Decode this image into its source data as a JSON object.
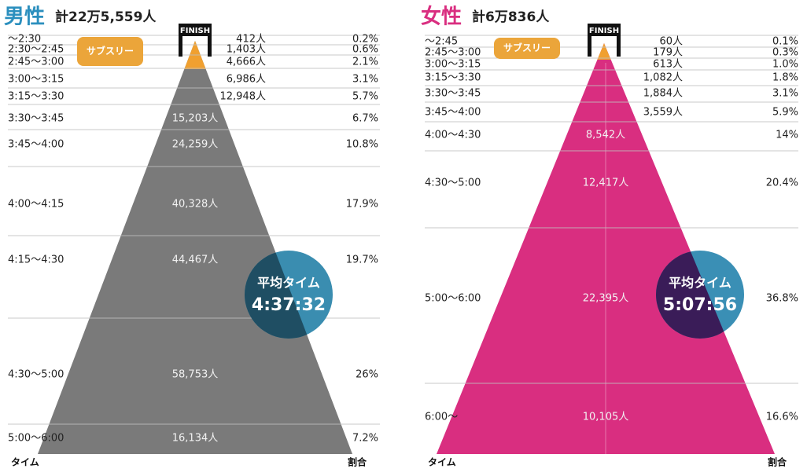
{
  "panels": [
    {
      "title": "男性",
      "total": "計22万5,559人",
      "finish": "FINISH",
      "sub3": "サブスリー",
      "avg_label": "平均タイム",
      "avg_time": "4:37:32",
      "time_header": "タイム",
      "ratio_header": "割合",
      "rows": [
        [
          "〜2:30",
          "412人",
          "0.2%"
        ],
        [
          "2:30〜2:45",
          "1,403人",
          "0.6%"
        ],
        [
          "2:45〜3:00",
          "4,666人",
          "2.1%"
        ],
        [
          "3:00〜3:15",
          "6,986人",
          "3.1%"
        ],
        [
          "3:15〜3:30",
          "12,948人",
          "5.7%"
        ],
        [
          "3:30〜3:45",
          "15,203人",
          "6.7%"
        ],
        [
          "3:45〜4:00",
          "24,259人",
          "10.8%"
        ],
        [
          "4:00〜4:15",
          "40,328人",
          "17.9%"
        ],
        [
          "4:15〜4:30",
          "44,467人",
          "19.7%"
        ],
        [
          "4:30〜5:00",
          "58,753人",
          "26%"
        ],
        [
          "5:00〜6:00",
          "16,134人",
          "7.2%"
        ]
      ]
    },
    {
      "title": "女性",
      "total": "計6万836人",
      "finish": "FINISH",
      "sub3": "サブスリー",
      "avg_label": "平均タイム",
      "avg_time": "5:07:56",
      "time_header": "タイム",
      "ratio_header": "割合",
      "rows": [
        [
          "〜2:45",
          "60人",
          "0.1%"
        ],
        [
          "2:45〜3:00",
          "179人",
          "0.3%"
        ],
        [
          "3:00〜3:15",
          "613人",
          "1.0%"
        ],
        [
          "3:15〜3:30",
          "1,082人",
          "1.8%"
        ],
        [
          "3:30〜3:45",
          "1,884人",
          "3.1%"
        ],
        [
          "3:45〜4:00",
          "3,559人",
          "5.9%"
        ],
        [
          "4:00〜4:30",
          "8,542人",
          "14%"
        ],
        [
          "4:30〜5:00",
          "12,417人",
          "20.4%"
        ],
        [
          "5:00〜6:00",
          "22,395人",
          "36.8%"
        ],
        [
          "6:00〜",
          "10,105人",
          "16.6%"
        ]
      ]
    }
  ]
}
